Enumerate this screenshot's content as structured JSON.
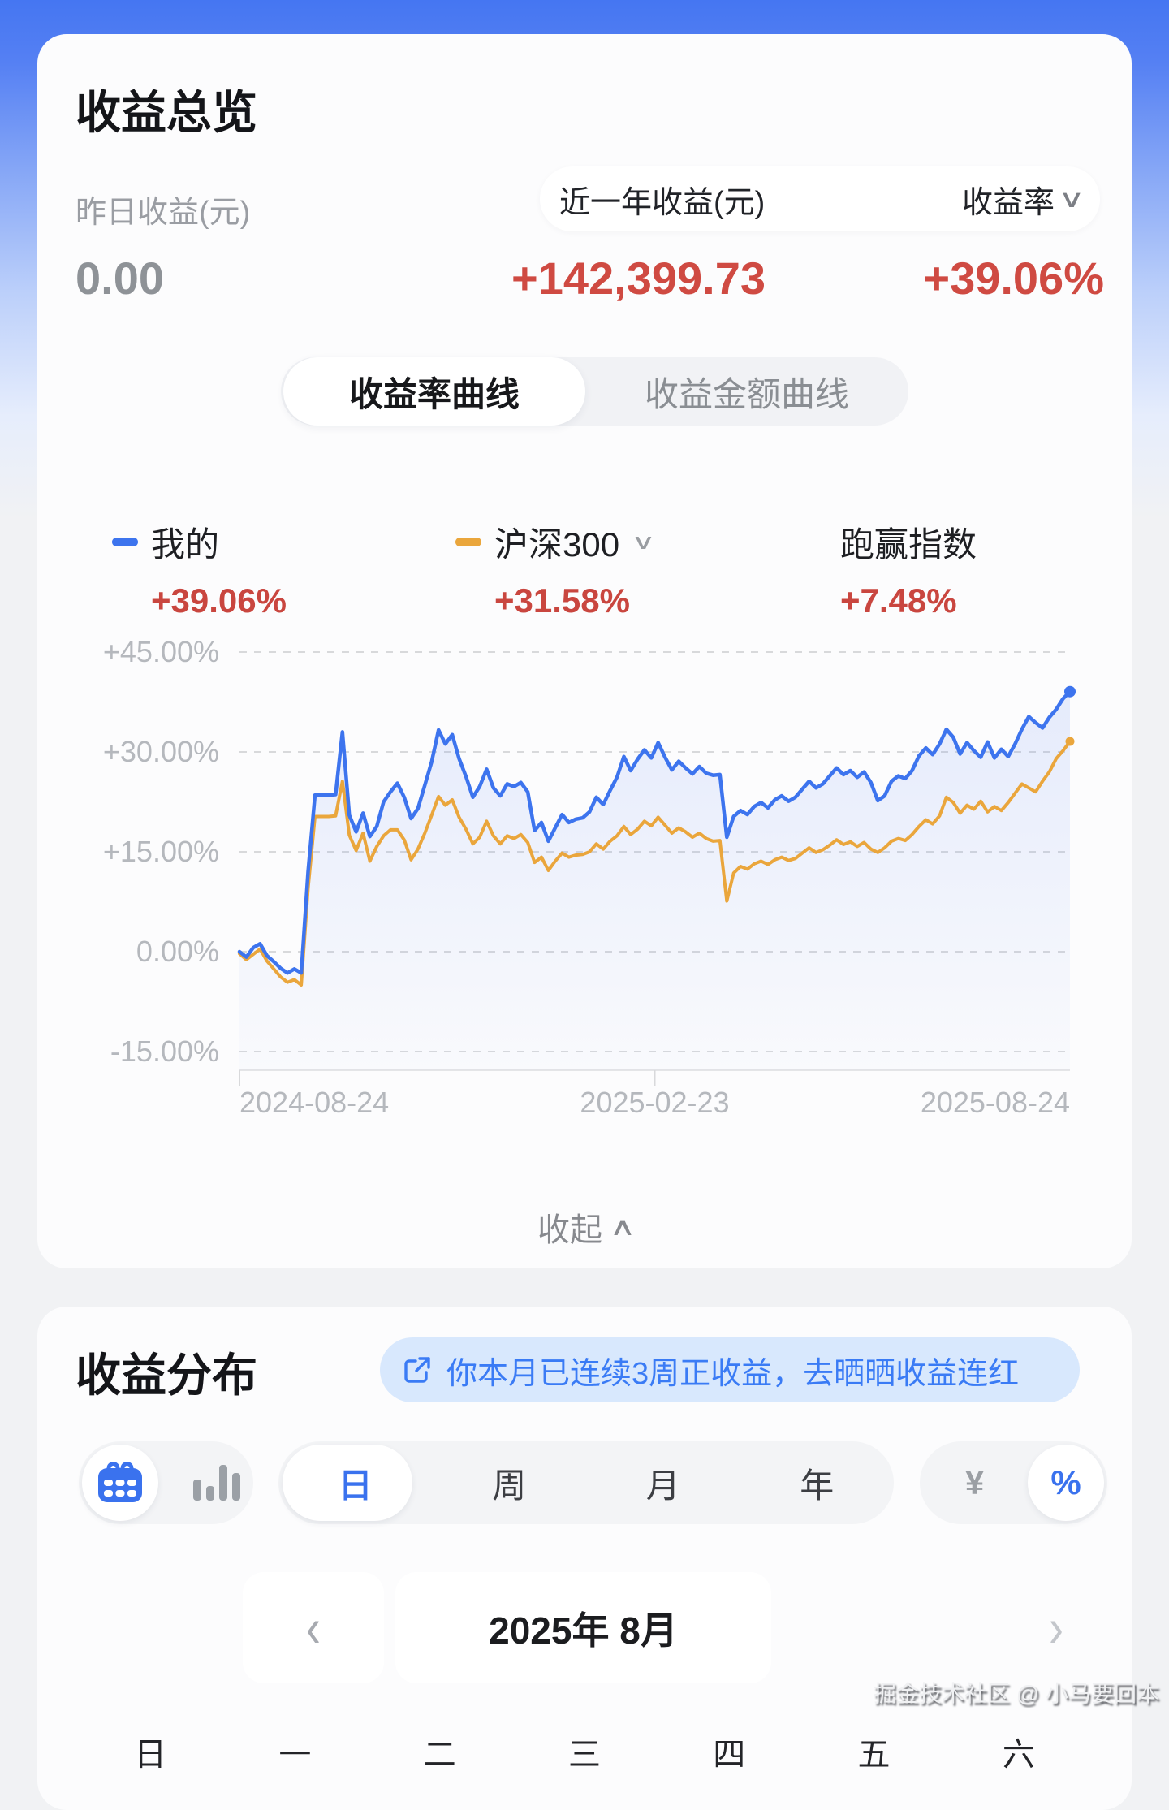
{
  "overview": {
    "title": "收益总览",
    "yesterday_label": "昨日收益(元)",
    "yesterday_value": "0.00",
    "period_label": "近一年收益(元)",
    "metric_label": "收益率",
    "period_value": "+142,399.73",
    "metric_value": "+39.06%",
    "tabs": [
      {
        "label": "收益率曲线",
        "selected": true
      },
      {
        "label": "收益金额曲线",
        "selected": false
      }
    ],
    "legend": [
      {
        "name": "我的",
        "value": "+39.06%",
        "color": "#3d74ee"
      },
      {
        "name": "沪深300",
        "value": "+31.58%",
        "color": "#eaa63c",
        "has_dropdown": true
      },
      {
        "name": "跑赢指数",
        "value": "+7.48%"
      }
    ],
    "collapse_label": "收起"
  },
  "chart_data": {
    "type": "line",
    "title": "收益率曲线（近一年）",
    "grid": "horizontal-dashed",
    "legend_position": "top",
    "ylim": [
      -15,
      45
    ],
    "y_ticks": [
      {
        "label": "+45.00%",
        "value": 45
      },
      {
        "label": "+30.00%",
        "value": 30
      },
      {
        "label": "+15.00%",
        "value": 15
      },
      {
        "label": "0.00%",
        "value": 0
      },
      {
        "label": "-15.00%",
        "value": -15
      }
    ],
    "x_tick_labels": [
      "2024-08-24",
      "2025-02-23",
      "2025-08-24"
    ],
    "series": [
      {
        "name": "我的",
        "color": "#3d74ee",
        "fill": true,
        "end_value": 39.06,
        "values": [
          0,
          -0.8,
          0.6,
          1.2,
          -0.6,
          -1.5,
          -2.5,
          -3.2,
          -2.6,
          -3.2,
          12,
          23.5,
          23.5,
          23.5,
          23.6,
          33,
          20.5,
          18,
          20.8,
          17.3,
          18.8,
          22.5,
          24,
          25.3,
          23.2,
          20,
          21.5,
          25,
          28.5,
          33.3,
          31.2,
          32.6,
          29,
          26.3,
          23.2,
          24.8,
          27.4,
          24.6,
          23.4,
          25.2,
          24.8,
          25.4,
          24,
          18.2,
          19.4,
          16.6,
          18.6,
          20.6,
          19.4,
          19.9,
          20.1,
          21,
          23.2,
          22.1,
          24.2,
          26.2,
          29.3,
          27.2,
          28.9,
          30.3,
          29.1,
          31.4,
          29.2,
          27.3,
          28.6,
          27.6,
          26.7,
          27.8,
          26.8,
          26.5,
          26.6,
          17.2,
          20.3,
          21.2,
          20.6,
          21.8,
          22.4,
          21.6,
          22.8,
          23.4,
          22.6,
          23.2,
          24.4,
          25.6,
          24.6,
          25.2,
          26.4,
          27.6,
          26.6,
          27.2,
          26.2,
          27,
          25.4,
          22.7,
          23.4,
          25.6,
          26.4,
          26,
          27.2,
          29.4,
          30.6,
          29.6,
          31.2,
          33.4,
          32.2,
          29.7,
          31.4,
          30.2,
          29.2,
          31.5,
          29.1,
          30.4,
          29.3,
          31.2,
          33.4,
          35.3,
          34.4,
          33.6,
          35.2,
          36.4,
          38,
          39.06
        ]
      },
      {
        "name": "沪深300",
        "color": "#eaa63c",
        "fill": false,
        "end_value": 31.58,
        "values": [
          -0.3,
          -1.2,
          -0.4,
          0.4,
          -1.4,
          -2.6,
          -3.8,
          -4.6,
          -4.2,
          -5,
          9.5,
          20.3,
          20.3,
          20.3,
          20.4,
          25.6,
          17.5,
          15.2,
          17.8,
          13.6,
          15.8,
          17.4,
          18.3,
          18.3,
          16.8,
          13.8,
          15.4,
          17.8,
          20.5,
          23.3,
          22,
          22.8,
          20.2,
          18.4,
          16.2,
          17.2,
          19.6,
          17.4,
          16.2,
          17.4,
          17,
          17.6,
          16.4,
          13.4,
          14.2,
          12.2,
          13.6,
          14.8,
          14.2,
          14.5,
          14.6,
          15,
          16.2,
          15.4,
          16.6,
          17.4,
          18.8,
          17.6,
          18.4,
          19.6,
          18.9,
          20.2,
          19,
          17.8,
          18.6,
          18,
          17.2,
          17.8,
          17,
          16.6,
          16.7,
          7.6,
          11.8,
          12.8,
          12.4,
          13.2,
          13.6,
          13.1,
          13.8,
          14.2,
          13.7,
          14,
          14.8,
          15.6,
          14.9,
          15.3,
          16,
          16.8,
          16.1,
          16.5,
          15.8,
          16.4,
          15.4,
          14.9,
          15.6,
          16.6,
          17,
          16.7,
          17.6,
          18.8,
          19.8,
          19.2,
          20.4,
          23.2,
          22.4,
          20.8,
          22,
          21.4,
          22.6,
          21,
          21.8,
          21.2,
          22.4,
          23.8,
          25.2,
          24.6,
          24,
          25.6,
          27,
          29,
          30.2,
          31.58
        ]
      }
    ]
  },
  "distribution": {
    "title": "收益分布",
    "notice": "你本月已连续3周正收益，去晒晒收益连红",
    "period_tabs": [
      {
        "label": "日",
        "selected": true
      },
      {
        "label": "周",
        "selected": false
      },
      {
        "label": "月",
        "selected": false
      },
      {
        "label": "年",
        "selected": false
      }
    ],
    "unit_currency": "¥",
    "unit_percent": "%",
    "month_label": "2025年 8月",
    "weekdays": [
      "日",
      "一",
      "二",
      "三",
      "四",
      "五",
      "六"
    ]
  },
  "icons": {
    "chevron_down": "∨",
    "chevron_up": "∧",
    "chevron_left": "‹",
    "chevron_right": "›"
  },
  "watermark": "掘金技术社区 @ 小马要回本"
}
